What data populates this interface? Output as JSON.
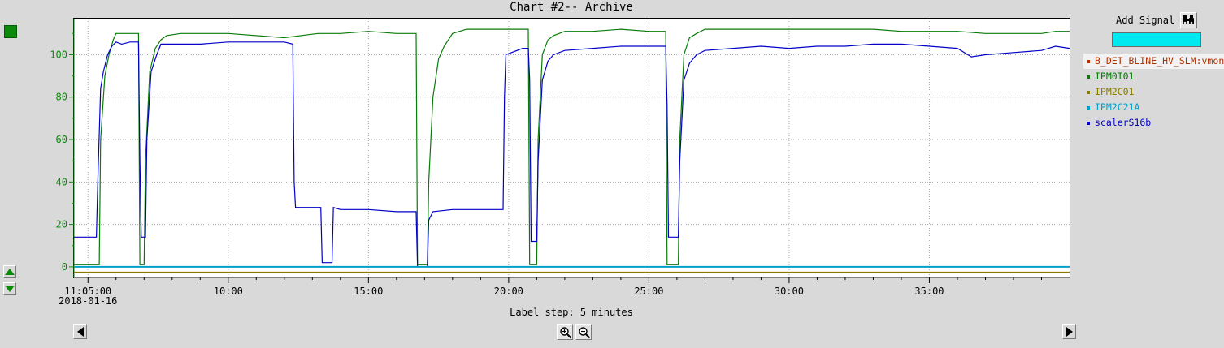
{
  "window": {
    "title": "Chart #2-- Archive"
  },
  "footer": {
    "label_step": "Label step: 5 minutes"
  },
  "add_signal": {
    "label": "Add Signal",
    "input_value": ""
  },
  "legend": [
    {
      "label": "B_DET_BLINE_HV_SLM:vmon",
      "color": "#b03000"
    },
    {
      "label": "IPM0I01",
      "color": "#0a7a0a"
    },
    {
      "label": "IPM2C01",
      "color": "#8a7a00"
    },
    {
      "label": "IPM2C21A",
      "color": "#00a0c8"
    },
    {
      "label": "scalerS16b",
      "color": "#0000c8"
    }
  ],
  "colors": {
    "axis": "#0c8a0c",
    "input": "#00e8f0"
  },
  "icons": {
    "axis_up": "triangle-up-icon",
    "axis_down": "triangle-down-icon",
    "scroll_left": "triangle-left-icon",
    "scroll_right": "triangle-right-icon",
    "zoom_in": "magnifier-plus-icon",
    "zoom_out": "magnifier-minus-icon",
    "add_signal": "binoculars-icon"
  },
  "chart_data": {
    "type": "line",
    "title": "Chart #2-- Archive",
    "xlabel": "",
    "ylabel": "",
    "xlim": [
      4.5,
      40.0
    ],
    "ylim": [
      -5,
      117
    ],
    "x_unit": "minutes past 11:00 on 2018-01-16",
    "x_ticks": [
      {
        "x": 5,
        "label": "11:05:00",
        "sublabel": "2018-01-16"
      },
      {
        "x": 10,
        "label": "10:00"
      },
      {
        "x": 15,
        "label": "15:00"
      },
      {
        "x": 20,
        "label": "20:00"
      },
      {
        "x": 25,
        "label": "25:00"
      },
      {
        "x": 30,
        "label": "30:00"
      },
      {
        "x": 35,
        "label": "35:00"
      }
    ],
    "y_ticks": [
      0,
      20,
      40,
      60,
      80,
      100
    ],
    "grid": true,
    "series": [
      {
        "name": "IPM0I01",
        "color": "#0a7a0a",
        "points": [
          [
            4.5,
            1
          ],
          [
            5.4,
            1
          ],
          [
            5.45,
            60
          ],
          [
            5.6,
            90
          ],
          [
            5.75,
            100
          ],
          [
            5.9,
            107
          ],
          [
            6.0,
            110
          ],
          [
            6.8,
            110
          ],
          [
            6.85,
            1
          ],
          [
            7.0,
            1
          ],
          [
            7.05,
            50
          ],
          [
            7.2,
            92
          ],
          [
            7.4,
            103
          ],
          [
            7.6,
            107
          ],
          [
            7.8,
            109
          ],
          [
            8.3,
            110
          ],
          [
            10,
            110
          ],
          [
            12,
            108
          ],
          [
            13.2,
            110
          ],
          [
            14,
            110
          ],
          [
            15,
            111
          ],
          [
            16,
            110
          ],
          [
            16.7,
            110
          ],
          [
            16.75,
            1
          ],
          [
            17.1,
            1
          ],
          [
            17.15,
            40
          ],
          [
            17.3,
            80
          ],
          [
            17.5,
            98
          ],
          [
            17.7,
            104
          ],
          [
            18.0,
            110
          ],
          [
            18.5,
            112
          ],
          [
            19,
            112
          ],
          [
            20,
            112
          ],
          [
            20.7,
            112
          ],
          [
            20.75,
            1
          ],
          [
            21.0,
            1
          ],
          [
            21.05,
            60
          ],
          [
            21.2,
            100
          ],
          [
            21.4,
            107
          ],
          [
            21.6,
            109
          ],
          [
            22,
            111
          ],
          [
            23,
            111
          ],
          [
            24,
            112
          ],
          [
            25,
            111
          ],
          [
            25.6,
            111
          ],
          [
            25.65,
            1
          ],
          [
            26.05,
            1
          ],
          [
            26.1,
            60
          ],
          [
            26.25,
            100
          ],
          [
            26.45,
            108
          ],
          [
            26.7,
            110
          ],
          [
            27,
            112
          ],
          [
            28,
            112
          ],
          [
            29,
            112
          ],
          [
            30,
            112
          ],
          [
            31,
            112
          ],
          [
            32,
            112
          ],
          [
            33,
            112
          ],
          [
            34,
            111
          ],
          [
            35,
            111
          ],
          [
            36,
            111
          ],
          [
            37,
            110
          ],
          [
            38,
            110
          ],
          [
            38.5,
            110
          ],
          [
            39.0,
            110
          ],
          [
            39.5,
            111
          ],
          [
            40,
            111
          ]
        ]
      },
      {
        "name": "scalerS16b",
        "color": "#0000c8",
        "points": [
          [
            4.5,
            14
          ],
          [
            5.3,
            14
          ],
          [
            5.35,
            40
          ],
          [
            5.45,
            84
          ],
          [
            5.55,
            92
          ],
          [
            5.7,
            100
          ],
          [
            5.85,
            104
          ],
          [
            6.0,
            106
          ],
          [
            6.2,
            105
          ],
          [
            6.5,
            106
          ],
          [
            6.8,
            106
          ],
          [
            6.85,
            50
          ],
          [
            6.9,
            14
          ],
          [
            7.05,
            14
          ],
          [
            7.1,
            60
          ],
          [
            7.25,
            92
          ],
          [
            7.45,
            100
          ],
          [
            7.6,
            105
          ],
          [
            8,
            105
          ],
          [
            9,
            105
          ],
          [
            10,
            106
          ],
          [
            11,
            106
          ],
          [
            12,
            106
          ],
          [
            12.3,
            105
          ],
          [
            12.35,
            40
          ],
          [
            12.4,
            28
          ],
          [
            13.3,
            28
          ],
          [
            13.35,
            2
          ],
          [
            13.7,
            2
          ],
          [
            13.75,
            28
          ],
          [
            14,
            27
          ],
          [
            15,
            27
          ],
          [
            16,
            26
          ],
          [
            16.7,
            26
          ],
          [
            16.75,
            0
          ],
          [
            17.1,
            0
          ],
          [
            17.15,
            22
          ],
          [
            17.3,
            26
          ],
          [
            18,
            27
          ],
          [
            19,
            27
          ],
          [
            19.8,
            27
          ],
          [
            19.85,
            80
          ],
          [
            19.9,
            100
          ],
          [
            20.5,
            103
          ],
          [
            20.7,
            103
          ],
          [
            20.75,
            88
          ],
          [
            20.8,
            12
          ],
          [
            21.0,
            12
          ],
          [
            21.05,
            50
          ],
          [
            21.2,
            88
          ],
          [
            21.4,
            97
          ],
          [
            21.6,
            100
          ],
          [
            22,
            102
          ],
          [
            23,
            103
          ],
          [
            24,
            104
          ],
          [
            25,
            104
          ],
          [
            25.6,
            104
          ],
          [
            25.65,
            76
          ],
          [
            25.7,
            14
          ],
          [
            26.05,
            14
          ],
          [
            26.1,
            50
          ],
          [
            26.25,
            88
          ],
          [
            26.45,
            96
          ],
          [
            26.7,
            100
          ],
          [
            27,
            102
          ],
          [
            28,
            103
          ],
          [
            29,
            104
          ],
          [
            30,
            103
          ],
          [
            31,
            104
          ],
          [
            32,
            104
          ],
          [
            33,
            105
          ],
          [
            34,
            105
          ],
          [
            35,
            104
          ],
          [
            36,
            103
          ],
          [
            36.5,
            99
          ],
          [
            37,
            100
          ],
          [
            38,
            101
          ],
          [
            39,
            102
          ],
          [
            39.5,
            104
          ],
          [
            40,
            103
          ]
        ]
      },
      {
        "name": "IPM2C21A",
        "color": "#00a0c8",
        "points": [
          [
            4.5,
            0
          ],
          [
            40,
            0
          ]
        ]
      },
      {
        "name": "IPM2C01",
        "color": "#8a7a00",
        "points": [
          [
            4.5,
            -2.5
          ],
          [
            40,
            -2.5
          ]
        ]
      }
    ]
  }
}
